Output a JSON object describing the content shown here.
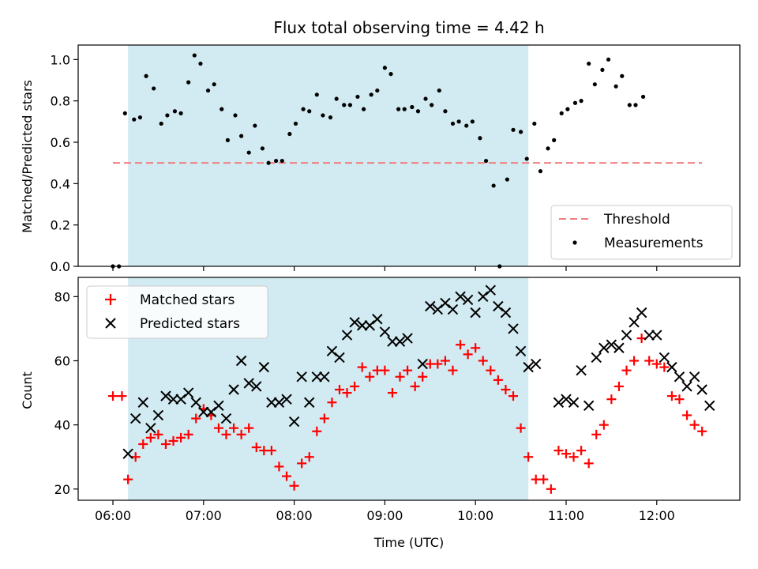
{
  "chart_data": [
    {
      "type": "scatter",
      "title": "Flux total observing time = 4.42 h",
      "xlabel": "",
      "ylabel": "Matched/Predicted stars",
      "xlim": [
        "05:37",
        "12:55"
      ],
      "ylim": [
        0,
        1.07
      ],
      "yticks": [
        0.0,
        0.2,
        0.4,
        0.6,
        0.8,
        1.0
      ],
      "ytick_labels": [
        "0.0",
        "0.2",
        "0.4",
        "0.6",
        "0.8",
        "1.0"
      ],
      "highlight_span": [
        "06:10",
        "10:35"
      ],
      "highlight_color": "#add8e6",
      "legend_position": "lower-right",
      "threshold": {
        "name": "Threshold",
        "value": 0.5,
        "x_range": [
          "06:00",
          "12:30"
        ],
        "color": "#f08080"
      },
      "series": [
        {
          "name": "Measurements",
          "color": "#000000",
          "marker": "dot",
          "points": [
            [
              "06:00",
              0.0
            ],
            [
              "06:04",
              0.0
            ],
            [
              "06:08",
              0.74
            ],
            [
              "06:14",
              0.71
            ],
            [
              "06:18",
              0.72
            ],
            [
              "06:22",
              0.92
            ],
            [
              "06:27",
              0.86
            ],
            [
              "06:32",
              0.69
            ],
            [
              "06:36",
              0.73
            ],
            [
              "06:41",
              0.75
            ],
            [
              "06:45",
              0.74
            ],
            [
              "06:50",
              0.89
            ],
            [
              "06:54",
              1.02
            ],
            [
              "06:58",
              0.98
            ],
            [
              "07:03",
              0.85
            ],
            [
              "07:07",
              0.88
            ],
            [
              "07:12",
              0.76
            ],
            [
              "07:16",
              0.61
            ],
            [
              "07:21",
              0.73
            ],
            [
              "07:25",
              0.63
            ],
            [
              "07:30",
              0.55
            ],
            [
              "07:34",
              0.68
            ],
            [
              "07:39",
              0.57
            ],
            [
              "07:43",
              0.5
            ],
            [
              "07:48",
              0.51
            ],
            [
              "07:52",
              0.51
            ],
            [
              "07:57",
              0.64
            ],
            [
              "08:01",
              0.69
            ],
            [
              "08:06",
              0.76
            ],
            [
              "08:10",
              0.75
            ],
            [
              "08:15",
              0.83
            ],
            [
              "08:19",
              0.73
            ],
            [
              "08:24",
              0.72
            ],
            [
              "08:28",
              0.81
            ],
            [
              "08:33",
              0.78
            ],
            [
              "08:37",
              0.78
            ],
            [
              "08:42",
              0.82
            ],
            [
              "08:46",
              0.76
            ],
            [
              "08:51",
              0.83
            ],
            [
              "08:55",
              0.85
            ],
            [
              "09:00",
              0.96
            ],
            [
              "09:04",
              0.93
            ],
            [
              "09:09",
              0.76
            ],
            [
              "09:13",
              0.76
            ],
            [
              "09:18",
              0.77
            ],
            [
              "09:22",
              0.75
            ],
            [
              "09:27",
              0.81
            ],
            [
              "09:31",
              0.78
            ],
            [
              "09:36",
              0.85
            ],
            [
              "09:40",
              0.75
            ],
            [
              "09:45",
              0.69
            ],
            [
              "09:49",
              0.7
            ],
            [
              "09:54",
              0.68
            ],
            [
              "09:58",
              0.7
            ],
            [
              "10:03",
              0.62
            ],
            [
              "10:07",
              0.51
            ],
            [
              "10:12",
              0.39
            ],
            [
              "10:16",
              0.0
            ],
            [
              "10:21",
              0.42
            ],
            [
              "10:25",
              0.66
            ],
            [
              "10:30",
              0.65
            ],
            [
              "10:34",
              0.52
            ],
            [
              "10:39",
              0.69
            ],
            [
              "10:43",
              0.46
            ],
            [
              "10:48",
              0.57
            ],
            [
              "10:52",
              0.61
            ],
            [
              "10:57",
              0.74
            ],
            [
              "11:01",
              0.76
            ],
            [
              "11:06",
              0.79
            ],
            [
              "11:10",
              0.8
            ],
            [
              "11:15",
              0.98
            ],
            [
              "11:19",
              0.88
            ],
            [
              "11:24",
              0.95
            ],
            [
              "11:28",
              1.0
            ],
            [
              "11:33",
              0.87
            ],
            [
              "11:37",
              0.92
            ],
            [
              "11:42",
              0.78
            ],
            [
              "11:46",
              0.78
            ],
            [
              "11:51",
              0.82
            ]
          ]
        }
      ]
    },
    {
      "type": "scatter",
      "title": "",
      "xlabel": "Time (UTC)",
      "ylabel": "Count",
      "xlim": [
        "05:37",
        "12:55"
      ],
      "ylim": [
        16.5,
        86
      ],
      "yticks": [
        20,
        40,
        60,
        80
      ],
      "ytick_labels": [
        "20",
        "40",
        "60",
        "80"
      ],
      "xticks": [
        "06:00",
        "07:00",
        "08:00",
        "09:00",
        "10:00",
        "11:00",
        "12:00"
      ],
      "xtick_labels": [
        "06:00",
        "07:00",
        "08:00",
        "09:00",
        "10:00",
        "11:00",
        "12:00"
      ],
      "highlight_span": [
        "06:10",
        "10:35"
      ],
      "highlight_color": "#add8e6",
      "legend_position": "upper-left",
      "series": [
        {
          "name": "Matched stars",
          "color": "#ff0000",
          "marker": "plus",
          "points": [
            [
              "06:00",
              49
            ],
            [
              "06:06",
              49
            ],
            [
              "06:10",
              23
            ],
            [
              "06:15",
              30
            ],
            [
              "06:20",
              34
            ],
            [
              "06:25",
              36
            ],
            [
              "06:30",
              37
            ],
            [
              "06:35",
              34
            ],
            [
              "06:40",
              35
            ],
            [
              "06:45",
              36
            ],
            [
              "06:50",
              37
            ],
            [
              "06:55",
              42
            ],
            [
              "07:00",
              45
            ],
            [
              "07:05",
              43
            ],
            [
              "07:10",
              39
            ],
            [
              "07:15",
              37
            ],
            [
              "07:20",
              39
            ],
            [
              "07:25",
              37
            ],
            [
              "07:30",
              39
            ],
            [
              "07:35",
              33
            ],
            [
              "07:40",
              32
            ],
            [
              "07:45",
              32
            ],
            [
              "07:50",
              27
            ],
            [
              "07:55",
              24
            ],
            [
              "08:00",
              21
            ],
            [
              "08:05",
              28
            ],
            [
              "08:10",
              30
            ],
            [
              "08:15",
              38
            ],
            [
              "08:20",
              42
            ],
            [
              "08:25",
              47
            ],
            [
              "08:30",
              51
            ],
            [
              "08:35",
              50
            ],
            [
              "08:40",
              52
            ],
            [
              "08:45",
              58
            ],
            [
              "08:50",
              55
            ],
            [
              "08:55",
              57
            ],
            [
              "09:00",
              57
            ],
            [
              "09:05",
              50
            ],
            [
              "09:10",
              55
            ],
            [
              "09:15",
              57
            ],
            [
              "09:20",
              52
            ],
            [
              "09:25",
              55
            ],
            [
              "09:30",
              59
            ],
            [
              "09:35",
              59
            ],
            [
              "09:40",
              60
            ],
            [
              "09:45",
              57
            ],
            [
              "09:50",
              65
            ],
            [
              "09:55",
              62
            ],
            [
              "10:00",
              64
            ],
            [
              "10:05",
              60
            ],
            [
              "10:10",
              57
            ],
            [
              "10:15",
              54
            ],
            [
              "10:20",
              51
            ],
            [
              "10:25",
              49
            ],
            [
              "10:30",
              39
            ],
            [
              "10:35",
              30
            ],
            [
              "10:40",
              23
            ],
            [
              "10:45",
              23
            ],
            [
              "10:50",
              20
            ],
            [
              "10:55",
              32
            ],
            [
              "11:00",
              31
            ],
            [
              "11:05",
              30
            ],
            [
              "11:10",
              32
            ],
            [
              "11:15",
              28
            ],
            [
              "11:20",
              37
            ],
            [
              "11:25",
              40
            ],
            [
              "11:30",
              48
            ],
            [
              "11:35",
              52
            ],
            [
              "11:40",
              57
            ],
            [
              "11:45",
              60
            ],
            [
              "11:50",
              67
            ],
            [
              "11:55",
              60
            ],
            [
              "12:00",
              59
            ],
            [
              "12:05",
              58
            ],
            [
              "12:10",
              49
            ],
            [
              "12:15",
              48
            ],
            [
              "12:20",
              43
            ],
            [
              "12:25",
              40
            ],
            [
              "12:30",
              38
            ]
          ]
        },
        {
          "name": "Predicted stars",
          "color": "#000000",
          "marker": "x",
          "points": [
            [
              "06:10",
              31
            ],
            [
              "06:15",
              42
            ],
            [
              "06:20",
              47
            ],
            [
              "06:25",
              39
            ],
            [
              "06:30",
              43
            ],
            [
              "06:35",
              49
            ],
            [
              "06:40",
              48
            ],
            [
              "06:45",
              48
            ],
            [
              "06:50",
              50
            ],
            [
              "06:55",
              47
            ],
            [
              "07:00",
              44
            ],
            [
              "07:05",
              44
            ],
            [
              "07:10",
              46
            ],
            [
              "07:15",
              42
            ],
            [
              "07:20",
              51
            ],
            [
              "07:25",
              60
            ],
            [
              "07:30",
              53
            ],
            [
              "07:35",
              52
            ],
            [
              "07:40",
              58
            ],
            [
              "07:45",
              47
            ],
            [
              "07:50",
              47
            ],
            [
              "07:55",
              48
            ],
            [
              "08:00",
              41
            ],
            [
              "08:05",
              55
            ],
            [
              "08:10",
              47
            ],
            [
              "08:15",
              55
            ],
            [
              "08:20",
              55
            ],
            [
              "08:25",
              63
            ],
            [
              "08:30",
              61
            ],
            [
              "08:35",
              68
            ],
            [
              "08:40",
              72
            ],
            [
              "08:45",
              71
            ],
            [
              "08:50",
              71
            ],
            [
              "08:55",
              73
            ],
            [
              "09:00",
              69
            ],
            [
              "09:05",
              66
            ],
            [
              "09:10",
              66
            ],
            [
              "09:15",
              67
            ],
            [
              "09:25",
              59
            ],
            [
              "09:30",
              77
            ],
            [
              "09:35",
              76
            ],
            [
              "09:40",
              78
            ],
            [
              "09:45",
              76
            ],
            [
              "09:50",
              80
            ],
            [
              "09:55",
              79
            ],
            [
              "10:00",
              75
            ],
            [
              "10:05",
              80
            ],
            [
              "10:10",
              82
            ],
            [
              "10:15",
              77
            ],
            [
              "10:20",
              75
            ],
            [
              "10:25",
              70
            ],
            [
              "10:30",
              63
            ],
            [
              "10:35",
              58
            ],
            [
              "10:40",
              59
            ],
            [
              "10:55",
              47
            ],
            [
              "11:00",
              48
            ],
            [
              "11:05",
              47
            ],
            [
              "11:10",
              57
            ],
            [
              "11:15",
              46
            ],
            [
              "11:20",
              61
            ],
            [
              "11:25",
              64
            ],
            [
              "11:30",
              65
            ],
            [
              "11:35",
              64
            ],
            [
              "11:40",
              68
            ],
            [
              "11:45",
              72
            ],
            [
              "11:50",
              75
            ],
            [
              "11:55",
              68
            ],
            [
              "12:00",
              68
            ],
            [
              "12:05",
              61
            ],
            [
              "12:10",
              58
            ],
            [
              "12:15",
              55
            ],
            [
              "12:20",
              52
            ],
            [
              "12:25",
              55
            ],
            [
              "12:30",
              51
            ],
            [
              "12:35",
              46
            ]
          ]
        }
      ]
    }
  ]
}
